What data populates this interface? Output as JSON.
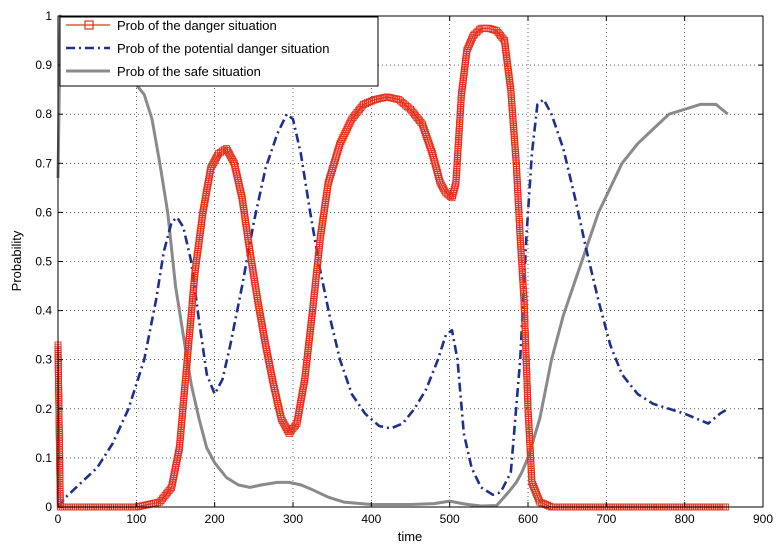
{
  "chart_data": {
    "type": "line",
    "xlabel": "time",
    "ylabel": "Probability",
    "xlim": [
      0,
      900
    ],
    "ylim": [
      0,
      1
    ],
    "xticks": [
      0,
      100,
      200,
      300,
      400,
      500,
      600,
      700,
      800,
      900
    ],
    "yticks": [
      0,
      0.1,
      0.2,
      0.3,
      0.4,
      0.5,
      0.6,
      0.7,
      0.8,
      0.9,
      1
    ],
    "grid": true,
    "legend_position": "top-left",
    "series": [
      {
        "name": "Prob of the danger situation",
        "color": "#e8301c",
        "style": "solid-square-markers",
        "points": [
          [
            0,
            0.33
          ],
          [
            3,
            0
          ],
          [
            100,
            0
          ],
          [
            130,
            0.01
          ],
          [
            145,
            0.04
          ],
          [
            155,
            0.12
          ],
          [
            165,
            0.3
          ],
          [
            175,
            0.48
          ],
          [
            185,
            0.6
          ],
          [
            195,
            0.69
          ],
          [
            205,
            0.72
          ],
          [
            215,
            0.73
          ],
          [
            225,
            0.7
          ],
          [
            235,
            0.63
          ],
          [
            245,
            0.52
          ],
          [
            255,
            0.42
          ],
          [
            265,
            0.33
          ],
          [
            275,
            0.25
          ],
          [
            285,
            0.18
          ],
          [
            295,
            0.15
          ],
          [
            305,
            0.17
          ],
          [
            315,
            0.26
          ],
          [
            325,
            0.4
          ],
          [
            335,
            0.55
          ],
          [
            345,
            0.66
          ],
          [
            360,
            0.74
          ],
          [
            375,
            0.79
          ],
          [
            390,
            0.82
          ],
          [
            405,
            0.83
          ],
          [
            420,
            0.835
          ],
          [
            435,
            0.83
          ],
          [
            450,
            0.81
          ],
          [
            465,
            0.78
          ],
          [
            478,
            0.72
          ],
          [
            488,
            0.66
          ],
          [
            495,
            0.64
          ],
          [
            503,
            0.63
          ],
          [
            508,
            0.66
          ],
          [
            515,
            0.84
          ],
          [
            522,
            0.93
          ],
          [
            530,
            0.96
          ],
          [
            540,
            0.975
          ],
          [
            550,
            0.975
          ],
          [
            560,
            0.97
          ],
          [
            570,
            0.95
          ],
          [
            578,
            0.85
          ],
          [
            585,
            0.7
          ],
          [
            590,
            0.55
          ],
          [
            595,
            0.42
          ],
          [
            600,
            0.2
          ],
          [
            605,
            0.05
          ],
          [
            615,
            0.01
          ],
          [
            630,
            0
          ],
          [
            855,
            0
          ]
        ]
      },
      {
        "name": "Prob of the potential danger situation",
        "color": "#1f2f8c",
        "style": "dash-dot",
        "points": [
          [
            0,
            0
          ],
          [
            10,
            0.02
          ],
          [
            30,
            0.05
          ],
          [
            50,
            0.08
          ],
          [
            70,
            0.13
          ],
          [
            90,
            0.2
          ],
          [
            110,
            0.3
          ],
          [
            125,
            0.42
          ],
          [
            135,
            0.52
          ],
          [
            145,
            0.58
          ],
          [
            152,
            0.59
          ],
          [
            160,
            0.57
          ],
          [
            170,
            0.5
          ],
          [
            180,
            0.38
          ],
          [
            190,
            0.27
          ],
          [
            200,
            0.23
          ],
          [
            210,
            0.26
          ],
          [
            220,
            0.33
          ],
          [
            235,
            0.45
          ],
          [
            250,
            0.58
          ],
          [
            265,
            0.69
          ],
          [
            280,
            0.76
          ],
          [
            292,
            0.8
          ],
          [
            300,
            0.79
          ],
          [
            310,
            0.72
          ],
          [
            322,
            0.6
          ],
          [
            335,
            0.48
          ],
          [
            348,
            0.38
          ],
          [
            360,
            0.3
          ],
          [
            375,
            0.23
          ],
          [
            392,
            0.19
          ],
          [
            410,
            0.165
          ],
          [
            425,
            0.16
          ],
          [
            440,
            0.17
          ],
          [
            455,
            0.2
          ],
          [
            470,
            0.24
          ],
          [
            485,
            0.3
          ],
          [
            495,
            0.35
          ],
          [
            503,
            0.36
          ],
          [
            510,
            0.3
          ],
          [
            518,
            0.15
          ],
          [
            528,
            0.08
          ],
          [
            540,
            0.04
          ],
          [
            555,
            0.025
          ],
          [
            565,
            0.03
          ],
          [
            578,
            0.07
          ],
          [
            590,
            0.3
          ],
          [
            598,
            0.55
          ],
          [
            605,
            0.72
          ],
          [
            612,
            0.82
          ],
          [
            620,
            0.83
          ],
          [
            630,
            0.8
          ],
          [
            645,
            0.73
          ],
          [
            660,
            0.63
          ],
          [
            675,
            0.52
          ],
          [
            690,
            0.42
          ],
          [
            705,
            0.33
          ],
          [
            720,
            0.27
          ],
          [
            740,
            0.23
          ],
          [
            760,
            0.21
          ],
          [
            780,
            0.2
          ],
          [
            800,
            0.19
          ],
          [
            815,
            0.18
          ],
          [
            830,
            0.17
          ],
          [
            845,
            0.19
          ],
          [
            855,
            0.2
          ]
        ]
      },
      {
        "name": "Prob of the safe situation",
        "color": "#8a8a8a",
        "style": "solid-thick",
        "points": [
          [
            0,
            0.67
          ],
          [
            3,
            1
          ],
          [
            60,
            0.92
          ],
          [
            90,
            0.88
          ],
          [
            100,
            0.86
          ],
          [
            110,
            0.84
          ],
          [
            120,
            0.79
          ],
          [
            130,
            0.7
          ],
          [
            140,
            0.6
          ],
          [
            150,
            0.45
          ],
          [
            160,
            0.35
          ],
          [
            170,
            0.25
          ],
          [
            180,
            0.18
          ],
          [
            190,
            0.12
          ],
          [
            200,
            0.09
          ],
          [
            215,
            0.06
          ],
          [
            230,
            0.045
          ],
          [
            245,
            0.04
          ],
          [
            260,
            0.045
          ],
          [
            280,
            0.05
          ],
          [
            295,
            0.05
          ],
          [
            310,
            0.045
          ],
          [
            325,
            0.035
          ],
          [
            345,
            0.02
          ],
          [
            365,
            0.01
          ],
          [
            400,
            0.005
          ],
          [
            450,
            0.005
          ],
          [
            480,
            0.007
          ],
          [
            500,
            0.012
          ],
          [
            520,
            0.006
          ],
          [
            540,
            0.002
          ],
          [
            560,
            0.003
          ],
          [
            575,
            0.03
          ],
          [
            585,
            0.05
          ],
          [
            592,
            0.07
          ],
          [
            600,
            0.1
          ],
          [
            615,
            0.18
          ],
          [
            630,
            0.3
          ],
          [
            645,
            0.39
          ],
          [
            660,
            0.46
          ],
          [
            675,
            0.53
          ],
          [
            690,
            0.6
          ],
          [
            705,
            0.65
          ],
          [
            720,
            0.7
          ],
          [
            740,
            0.74
          ],
          [
            760,
            0.77
          ],
          [
            780,
            0.8
          ],
          [
            800,
            0.81
          ],
          [
            820,
            0.82
          ],
          [
            840,
            0.82
          ],
          [
            855,
            0.8
          ]
        ]
      }
    ]
  }
}
